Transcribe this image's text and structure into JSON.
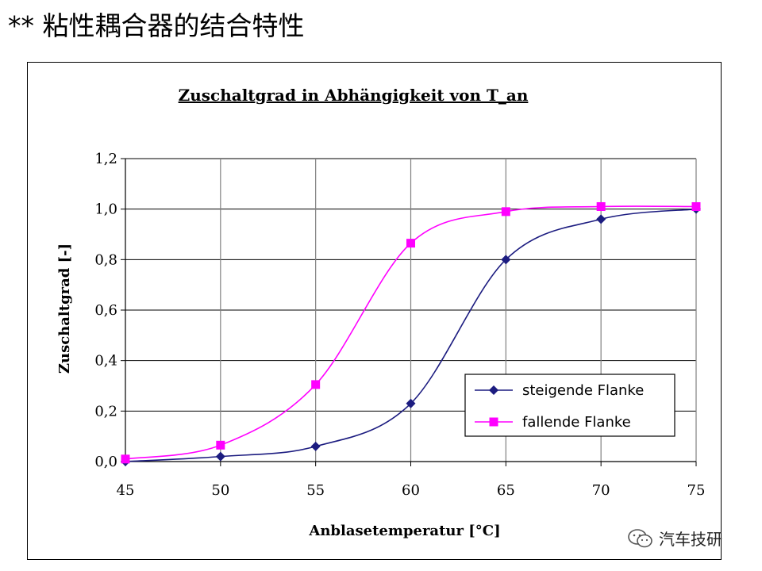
{
  "page": {
    "title": "** 粘性耦合器的结合特性",
    "watermark": "汽车技研"
  },
  "chart_data": {
    "type": "line",
    "title": "Zuschaltgrad in Abhängigkeit von T_an",
    "xlabel": "Anblasetemperatur [°C]",
    "ylabel": "Zuschaltgrad [-]",
    "xlim": [
      45,
      75
    ],
    "ylim": [
      0,
      1.2
    ],
    "x_ticks": [
      45,
      50,
      55,
      60,
      65,
      70,
      75
    ],
    "x_tick_labels": [
      "45",
      "50",
      "55",
      "60",
      "65",
      "70",
      "75"
    ],
    "y_ticks": [
      0,
      0.2,
      0.4,
      0.6,
      0.8,
      1.0,
      1.2
    ],
    "y_tick_labels": [
      "0,0",
      "0,2",
      "0,4",
      "0,6",
      "0,8",
      "1,0",
      "1,2"
    ],
    "grid": true,
    "legend_position": "bottom-right",
    "series": [
      {
        "name": "steigende Flanke",
        "color": "#1c1c80",
        "marker": "diamond",
        "points": [
          [
            45,
            0.0
          ],
          [
            50,
            0.02
          ],
          [
            55,
            0.06
          ],
          [
            60,
            0.23
          ],
          [
            65,
            0.8
          ],
          [
            70,
            0.96
          ],
          [
            75,
            1.0
          ]
        ]
      },
      {
        "name": "fallende Flanke",
        "color": "#ff00ff",
        "marker": "square",
        "points": [
          [
            45,
            0.01
          ],
          [
            50,
            0.065
          ],
          [
            55,
            0.305
          ],
          [
            60,
            0.865
          ],
          [
            65,
            0.99
          ],
          [
            70,
            1.01
          ],
          [
            75,
            1.01
          ]
        ]
      }
    ]
  }
}
